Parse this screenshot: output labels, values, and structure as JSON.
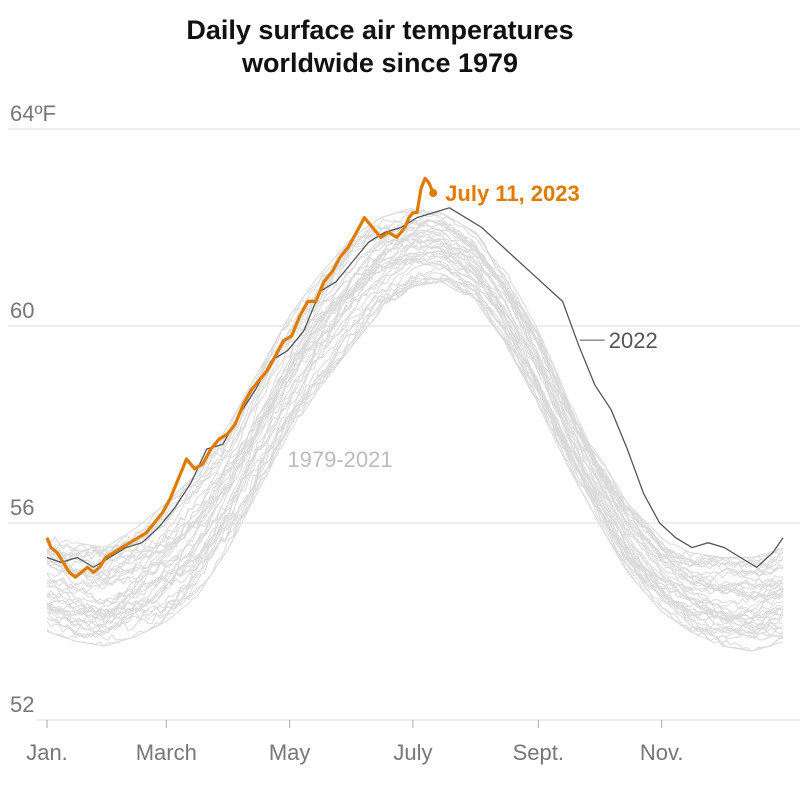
{
  "chart_data": {
    "type": "line",
    "title_line1": "Daily surface air temperatures",
    "title_line2": "worldwide since 1979",
    "y_axis": {
      "unit": "°F",
      "ticks": [
        {
          "value": 64,
          "label": "64ºF"
        },
        {
          "value": 60,
          "label": "60"
        },
        {
          "value": 56,
          "label": "56"
        },
        {
          "value": 52,
          "label": "52"
        }
      ],
      "ylim": [
        52,
        64
      ]
    },
    "x_axis": {
      "ticks": [
        {
          "label": "Jan.",
          "day": 1
        },
        {
          "label": "March",
          "day": 60
        },
        {
          "label": "May",
          "day": 121
        },
        {
          "label": "July",
          "day": 182
        },
        {
          "label": "Sept.",
          "day": 244
        },
        {
          "label": "Nov.",
          "day": 305
        }
      ],
      "xlim": [
        1,
        366
      ]
    },
    "grid": true,
    "colors": {
      "historical": "#dadada",
      "y2022": "#555555",
      "y2023": "#e07b00",
      "grid": "#dddddd",
      "tick_text": "#777777",
      "hist_label": "#bbbbbb"
    },
    "series_labels": {
      "y2023": "July 11, 2023",
      "y2022": "2022",
      "historical": "1979-2021"
    },
    "historical_band": {
      "name": "1979-2021",
      "day": [
        1,
        15,
        30,
        45,
        60,
        75,
        91,
        106,
        121,
        135,
        152,
        166,
        182,
        196,
        213,
        227,
        244,
        258,
        274,
        288,
        305,
        319,
        335,
        350,
        366
      ],
      "low": [
        53.8,
        53.6,
        53.5,
        53.7,
        54.0,
        54.5,
        55.5,
        56.7,
        57.8,
        58.7,
        59.6,
        60.3,
        60.8,
        60.9,
        60.5,
        59.7,
        58.4,
        57.2,
        56.0,
        55.0,
        54.2,
        53.8,
        53.5,
        53.4,
        53.6
      ],
      "high": [
        55.8,
        55.6,
        55.5,
        55.9,
        56.4,
        57.0,
        58.0,
        59.1,
        60.2,
        61.0,
        61.8,
        62.2,
        62.4,
        62.3,
        61.9,
        61.2,
        59.9,
        58.6,
        57.4,
        56.4,
        55.7,
        55.4,
        55.3,
        55.3,
        55.5
      ]
    },
    "series": [
      {
        "name": "2022",
        "day": [
          1,
          8,
          16,
          24,
          32,
          40,
          48,
          56,
          64,
          72,
          80,
          88,
          96,
          104,
          112,
          120,
          128,
          136,
          144,
          152,
          160,
          168,
          176,
          184,
          192,
          200,
          208,
          216,
          224,
          232,
          240,
          248,
          256,
          264,
          272,
          280,
          288,
          296,
          304,
          312,
          320,
          328,
          336,
          344,
          352,
          360,
          365
        ],
        "values": [
          55.3,
          55.2,
          55.3,
          55.1,
          55.3,
          55.5,
          55.6,
          55.9,
          56.3,
          56.8,
          57.5,
          57.6,
          58.2,
          58.7,
          59.3,
          59.5,
          59.9,
          60.7,
          60.9,
          61.3,
          61.7,
          61.9,
          62.0,
          62.2,
          62.3,
          62.4,
          62.2,
          62.0,
          61.7,
          61.4,
          61.1,
          60.8,
          60.5,
          59.6,
          58.8,
          58.3,
          57.5,
          56.6,
          56.0,
          55.7,
          55.5,
          55.6,
          55.5,
          55.3,
          55.1,
          55.4,
          55.7
        ]
      },
      {
        "name": "2023",
        "day": [
          1,
          3,
          6,
          9,
          12,
          15,
          18,
          21,
          24,
          27,
          30,
          34,
          38,
          42,
          46,
          50,
          54,
          58,
          62,
          66,
          70,
          74,
          78,
          82,
          86,
          90,
          94,
          98,
          102,
          106,
          110,
          114,
          118,
          122,
          126,
          130,
          134,
          138,
          142,
          146,
          150,
          154,
          158,
          162,
          166,
          170,
          174,
          178,
          180,
          182,
          184,
          186,
          188,
          190,
          192
        ],
        "values": [
          55.7,
          55.5,
          55.4,
          55.2,
          55.0,
          54.9,
          55.0,
          55.1,
          55.0,
          55.1,
          55.3,
          55.4,
          55.5,
          55.6,
          55.7,
          55.8,
          56.0,
          56.2,
          56.5,
          56.9,
          57.3,
          57.1,
          57.2,
          57.5,
          57.7,
          57.8,
          58.0,
          58.4,
          58.7,
          58.9,
          59.1,
          59.4,
          59.7,
          59.8,
          60.2,
          60.5,
          60.5,
          60.9,
          61.1,
          61.4,
          61.6,
          61.9,
          62.2,
          62.0,
          61.8,
          61.9,
          61.8,
          62.0,
          62.2,
          62.3,
          62.3,
          62.8,
          63.0,
          62.9,
          62.7
        ]
      }
    ]
  }
}
